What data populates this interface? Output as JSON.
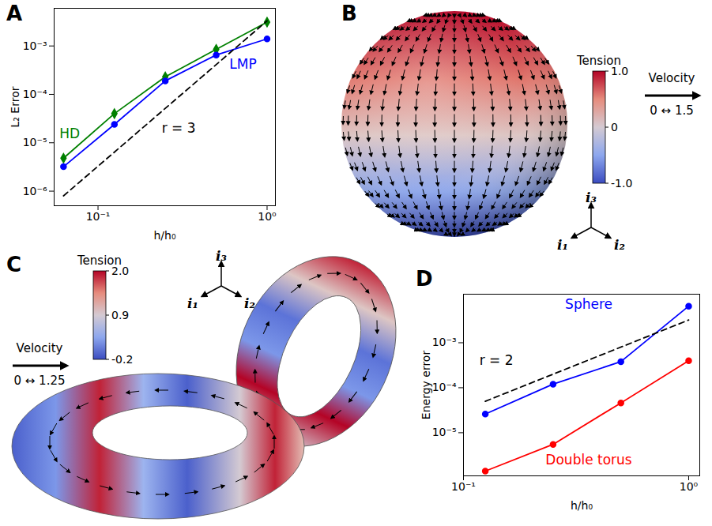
{
  "chart_data": [
    {
      "type": "line",
      "title": "A",
      "log": true,
      "grid": false,
      "xlabel": "h/h₀",
      "ylabel": "L₂ Error",
      "xlim": [
        0.055,
        1.12
      ],
      "ylim": [
        5e-07,
        0.006
      ],
      "xticks": [
        {
          "value": 0.1,
          "label": "10⁻¹"
        },
        {
          "value": 1,
          "label": "10⁰"
        }
      ],
      "yticks": [
        {
          "value": 1e-06,
          "label": "10⁻⁶"
        },
        {
          "value": 1e-05,
          "label": "10⁻⁵"
        },
        {
          "value": 0.0001,
          "label": "10⁻⁴"
        },
        {
          "value": 0.001,
          "label": "10⁻³"
        }
      ],
      "x": [
        0.0625,
        0.125,
        0.25,
        0.5,
        1
      ],
      "series": [
        {
          "name": "HD",
          "color": "#008000",
          "marker": "diamond",
          "values": [
            4.8e-06,
            4e-05,
            0.00023,
            0.00085,
            0.0031
          ]
        },
        {
          "name": "LMP",
          "color": "#0000ff",
          "marker": "circle",
          "values": [
            3.2e-06,
            2.4e-05,
            0.00019,
            0.00065,
            0.0014
          ]
        },
        {
          "name": "r = 3",
          "color": "#000000",
          "line_style": "dashed",
          "x": [
            0.0625,
            1
          ],
          "values": [
            8e-07,
            0.0033
          ]
        }
      ],
      "annotations": [
        {
          "text": "HD",
          "x": 0.068,
          "y": 1.5e-05
        },
        {
          "text": "LMP",
          "x": 0.72,
          "y": 0.00042
        },
        {
          "text": "r = 3",
          "x": 0.3,
          "y": 2e-05
        }
      ]
    },
    {
      "type": "sphere",
      "title": "B",
      "colorbar": {
        "label": "Tension",
        "range": [
          -1,
          1
        ],
        "ticks": [
          {
            "value": -1,
            "label": "-1.0"
          },
          0,
          {
            "value": 1,
            "label": "1.0"
          }
        ]
      },
      "velocity": {
        "label": "Velocity",
        "range": [
          0,
          1.5
        ],
        "range_label": "0 ↔ 1.5"
      },
      "axes_labels": [
        "i₁",
        "i₂",
        "i₃"
      ]
    },
    {
      "type": "torus",
      "title": "C",
      "colorbar": {
        "label": "Tension",
        "range": [
          -0.2,
          2.0
        ],
        "ticks": [
          -0.2,
          0.9,
          {
            "value": 2,
            "label": "2.0"
          }
        ]
      },
      "velocity": {
        "label": "Velocity",
        "range": [
          0,
          1.25
        ],
        "range_label": "0 ↔ 1.25"
      },
      "axes_labels": [
        "i₁",
        "i₂",
        "i₃"
      ]
    },
    {
      "type": "line",
      "title": "D",
      "log": true,
      "grid": false,
      "xlabel": "h/h₀",
      "ylabel": "Energy error",
      "xlim": [
        0.1,
        1.12
      ],
      "ylim": [
        1.1e-06,
        0.012
      ],
      "xticks": [
        {
          "value": 0.1,
          "label": "10⁻¹"
        },
        {
          "value": 1,
          "label": "10⁰"
        }
      ],
      "yticks": [
        {
          "value": 1e-05,
          "label": "10⁻⁵"
        },
        {
          "value": 0.0001,
          "label": "10⁻⁴"
        },
        {
          "value": 0.001,
          "label": "10⁻³"
        }
      ],
      "x": [
        0.125,
        0.25,
        0.5,
        1
      ],
      "series": [
        {
          "name": "Sphere",
          "color": "#0000ff",
          "marker": "circle",
          "values": [
            2.6e-05,
            0.00012,
            0.00038,
            0.0065
          ]
        },
        {
          "name": "Double torus",
          "color": "#ff0000",
          "marker": "circle",
          "values": [
            1.4e-06,
            5.5e-06,
            4.6e-05,
            0.0004
          ]
        },
        {
          "name": "r = 2",
          "color": "#000000",
          "line_style": "dashed",
          "x": [
            0.125,
            1
          ],
          "values": [
            5e-05,
            0.0032
          ]
        }
      ],
      "annotations": [
        {
          "text": "Sphere",
          "x": 0.36,
          "y": 0.007
        },
        {
          "text": "r = 2",
          "x": 0.14,
          "y": 0.0004
        },
        {
          "text": "Double torus",
          "x": 0.36,
          "y": 2.5e-06
        }
      ]
    }
  ]
}
